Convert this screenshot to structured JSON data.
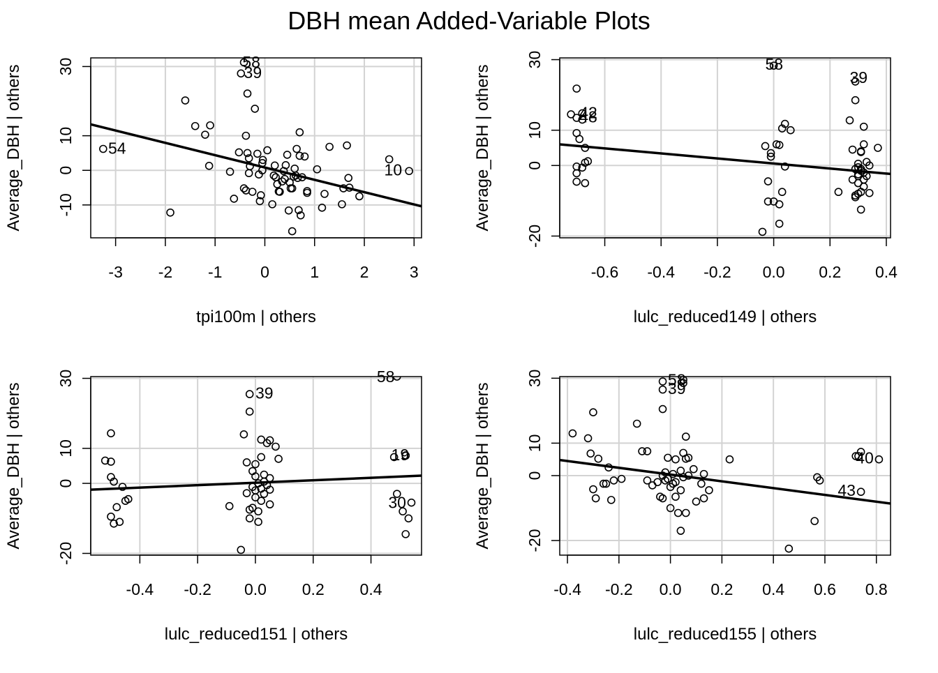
{
  "figure": {
    "title": "DBH mean Added-Variable Plots"
  },
  "chart_data": [
    {
      "type": "scatter",
      "xlabel": "tpi100m | others",
      "ylabel": "Average_DBH  | others",
      "xlim": [
        -3.5,
        3.15
      ],
      "ylim": [
        -19.5,
        32.5
      ],
      "xticks": [
        -3,
        -2,
        -1,
        0,
        1,
        2,
        3
      ],
      "yticks": [
        -10,
        0,
        10,
        30
      ],
      "ytick_labels": [
        "-10",
        "0",
        "10",
        "30"
      ],
      "grid": true,
      "fit_line": {
        "x": [
          -3.5,
          3.15
        ],
        "y": [
          13.3,
          -10.4
        ]
      },
      "points": [
        [
          -3.25,
          6.2
        ],
        [
          -1.9,
          -12.2
        ],
        [
          -1.6,
          20.2
        ],
        [
          -1.4,
          12.8
        ],
        [
          -1.2,
          10.3
        ],
        [
          -1.1,
          13.0
        ],
        [
          -1.12,
          1.3
        ],
        [
          -0.7,
          -0.4
        ],
        [
          -0.62,
          -8.2
        ],
        [
          -0.52,
          5.2
        ],
        [
          -0.48,
          28.0
        ],
        [
          -0.42,
          31.2
        ],
        [
          -0.38,
          10.0
        ],
        [
          -0.35,
          5.0
        ],
        [
          -0.32,
          3.5
        ],
        [
          -0.35,
          22.2
        ],
        [
          -0.3,
          1.2
        ],
        [
          -0.42,
          -5.2
        ],
        [
          -0.38,
          -5.8
        ],
        [
          -0.32,
          -0.8
        ],
        [
          -0.25,
          -6.2
        ],
        [
          -0.2,
          17.8
        ],
        [
          -0.15,
          4.8
        ],
        [
          -0.12,
          -1.2
        ],
        [
          -0.1,
          -8.9
        ],
        [
          -0.08,
          -7.2
        ],
        [
          -0.05,
          0.0
        ],
        [
          -0.05,
          2.1
        ],
        [
          -0.04,
          3.0
        ],
        [
          0.05,
          5.8
        ],
        [
          0.15,
          -9.8
        ],
        [
          0.18,
          -1.5
        ],
        [
          0.2,
          1.4
        ],
        [
          0.22,
          -2.0
        ],
        [
          0.25,
          -4.0
        ],
        [
          0.28,
          -6.1
        ],
        [
          0.3,
          -6.2
        ],
        [
          0.35,
          -3.2
        ],
        [
          0.38,
          -0.2
        ],
        [
          0.4,
          -2.5
        ],
        [
          0.42,
          1.5
        ],
        [
          0.45,
          4.5
        ],
        [
          0.48,
          -11.6
        ],
        [
          0.5,
          -3.5
        ],
        [
          0.52,
          -5.2
        ],
        [
          0.55,
          -5.2
        ],
        [
          0.55,
          -17.6
        ],
        [
          0.58,
          -1.8
        ],
        [
          0.6,
          0.5
        ],
        [
          0.62,
          -1.5
        ],
        [
          0.64,
          6.2
        ],
        [
          0.66,
          -2.2
        ],
        [
          0.68,
          -11.5
        ],
        [
          0.7,
          4.2
        ],
        [
          0.7,
          11.0
        ],
        [
          0.72,
          -13.0
        ],
        [
          0.75,
          -2.0
        ],
        [
          0.8,
          4.0
        ],
        [
          0.85,
          -6.0
        ],
        [
          0.85,
          -6.5
        ],
        [
          1.05,
          0.3
        ],
        [
          1.15,
          -10.8
        ],
        [
          1.2,
          -6.8
        ],
        [
          1.3,
          6.8
        ],
        [
          1.55,
          -9.8
        ],
        [
          1.58,
          -5.2
        ],
        [
          1.65,
          7.2
        ],
        [
          1.68,
          -2.2
        ],
        [
          1.7,
          -5.0
        ],
        [
          1.9,
          -7.5
        ],
        [
          2.5,
          3.2
        ],
        [
          2.9,
          -0.2
        ]
      ],
      "labels": [
        {
          "text": "58",
          "x": -0.45,
          "y": 31.3
        },
        {
          "text": "39",
          "x": -0.42,
          "y": 28.3
        },
        {
          "text": "54",
          "x": -3.15,
          "y": 6.4
        },
        {
          "text": "10",
          "x": 2.4,
          "y": 0.2
        }
      ]
    },
    {
      "type": "scatter",
      "xlabel": "lulc_reduced149 | others",
      "ylabel": "Average_DBH  | others",
      "xlim": [
        -0.76,
        0.415
      ],
      "ylim": [
        -20.5,
        30.5
      ],
      "xticks": [
        -0.6,
        -0.4,
        -0.2,
        0.0,
        0.2,
        0.4
      ],
      "yticks": [
        -20,
        0,
        10,
        30
      ],
      "ytick_labels": [
        "-20",
        "0",
        "10",
        "30"
      ],
      "grid": true,
      "fit_line": {
        "x": [
          -0.76,
          0.415
        ],
        "y": [
          6.0,
          -2.4
        ]
      },
      "points": [
        [
          -0.72,
          14.5
        ],
        [
          -0.7,
          21.8
        ],
        [
          -0.7,
          9.2
        ],
        [
          -0.7,
          13.5
        ],
        [
          -0.69,
          7.5
        ],
        [
          -0.68,
          14.8
        ],
        [
          -0.67,
          5.0
        ],
        [
          -0.7,
          -2.2
        ],
        [
          -0.7,
          -4.6
        ],
        [
          -0.68,
          13.0
        ],
        [
          -0.68,
          -0.6
        ],
        [
          -0.67,
          0.8
        ],
        [
          -0.66,
          1.2
        ],
        [
          -0.67,
          -5.0
        ],
        [
          -0.7,
          -0.3
        ],
        [
          -0.04,
          -18.8
        ],
        [
          -0.03,
          5.5
        ],
        [
          -0.02,
          -4.5
        ],
        [
          -0.02,
          -10.2
        ],
        [
          -0.01,
          3.5
        ],
        [
          -0.01,
          2.5
        ],
        [
          0.0,
          -10.2
        ],
        [
          0.0,
          28.3
        ],
        [
          0.01,
          6.0
        ],
        [
          0.02,
          5.8
        ],
        [
          0.02,
          -16.5
        ],
        [
          0.02,
          -11.0
        ],
        [
          0.03,
          -7.5
        ],
        [
          0.03,
          10.5
        ],
        [
          0.04,
          11.8
        ],
        [
          0.04,
          -0.3
        ],
        [
          0.06,
          10.0
        ],
        [
          0.23,
          -7.5
        ],
        [
          0.27,
          12.8
        ],
        [
          0.28,
          4.5
        ],
        [
          0.29,
          23.8
        ],
        [
          0.29,
          18.5
        ],
        [
          0.29,
          -8.5
        ],
        [
          0.29,
          -9.0
        ],
        [
          0.29,
          -1.0
        ],
        [
          0.3,
          -0.5
        ],
        [
          0.3,
          0.5
        ],
        [
          0.3,
          -3.0
        ],
        [
          0.3,
          -5.0
        ],
        [
          0.31,
          4.0
        ],
        [
          0.31,
          -1.5
        ],
        [
          0.31,
          -7.5
        ],
        [
          0.31,
          -12.5
        ],
        [
          0.32,
          11.0
        ],
        [
          0.32,
          6.0
        ],
        [
          0.32,
          -2.0
        ],
        [
          0.32,
          -4.0
        ],
        [
          0.32,
          -6.0
        ],
        [
          0.33,
          1.0
        ],
        [
          0.33,
          -3.0
        ],
        [
          0.34,
          0.0
        ],
        [
          0.34,
          -7.8
        ],
        [
          0.37,
          5.0
        ],
        [
          0.28,
          -4.0
        ],
        [
          0.3,
          -2.5
        ],
        [
          0.31,
          3.8
        ],
        [
          0.31,
          -1.0
        ],
        [
          0.3,
          -8.0
        ]
      ],
      "labels": [
        {
          "text": "58",
          "x": -0.03,
          "y": 28.7
        },
        {
          "text": "39",
          "x": 0.27,
          "y": 25.0
        },
        {
          "text": "42",
          "x": -0.69,
          "y": 15.0
        },
        {
          "text": "48",
          "x": -0.69,
          "y": 13.8
        }
      ]
    },
    {
      "type": "scatter",
      "xlabel": "lulc_reduced151 | others",
      "ylabel": "Average_DBH  | others",
      "xlim": [
        -0.57,
        0.575
      ],
      "ylim": [
        -20.5,
        30.5
      ],
      "xticks": [
        -0.4,
        -0.2,
        0.0,
        0.2,
        0.4
      ],
      "yticks": [
        -20,
        0,
        10,
        30
      ],
      "ytick_labels": [
        "-20",
        "0",
        "10",
        "30"
      ],
      "grid": true,
      "fit_line": {
        "x": [
          -0.57,
          0.575
        ],
        "y": [
          -1.8,
          2.2
        ]
      },
      "points": [
        [
          -0.52,
          6.5
        ],
        [
          -0.5,
          14.3
        ],
        [
          -0.5,
          6.2
        ],
        [
          -0.5,
          1.8
        ],
        [
          -0.49,
          0.5
        ],
        [
          -0.5,
          -9.5
        ],
        [
          -0.48,
          -6.8
        ],
        [
          -0.49,
          -11.5
        ],
        [
          -0.46,
          -1.0
        ],
        [
          -0.45,
          -5.0
        ],
        [
          -0.44,
          -4.5
        ],
        [
          -0.47,
          -11.0
        ],
        [
          -0.09,
          -6.5
        ],
        [
          -0.05,
          -19.0
        ],
        [
          -0.04,
          14.0
        ],
        [
          -0.03,
          6.0
        ],
        [
          -0.03,
          -2.8
        ],
        [
          -0.02,
          25.5
        ],
        [
          -0.02,
          20.5
        ],
        [
          -0.02,
          -7.5
        ],
        [
          -0.02,
          -10.0
        ],
        [
          -0.01,
          3.5
        ],
        [
          -0.01,
          -1.0
        ],
        [
          -0.01,
          -7.0
        ],
        [
          0.0,
          5.5
        ],
        [
          0.0,
          2.0
        ],
        [
          0.0,
          -2.0
        ],
        [
          0.0,
          -4.0
        ],
        [
          0.01,
          0.0
        ],
        [
          0.01,
          -8.0
        ],
        [
          0.01,
          -11.0
        ],
        [
          0.02,
          12.5
        ],
        [
          0.02,
          7.5
        ],
        [
          0.02,
          -1.5
        ],
        [
          0.02,
          -5.0
        ],
        [
          0.03,
          2.5
        ],
        [
          0.03,
          0.5
        ],
        [
          0.03,
          -3.0
        ],
        [
          0.04,
          11.5
        ],
        [
          0.04,
          -0.5
        ],
        [
          0.05,
          12.3
        ],
        [
          0.05,
          1.5
        ],
        [
          0.05,
          -1.8
        ],
        [
          0.05,
          -6.0
        ],
        [
          0.07,
          10.5
        ],
        [
          0.08,
          7.0
        ],
        [
          0.48,
          7.5
        ],
        [
          0.49,
          30.5
        ],
        [
          0.49,
          -3.0
        ],
        [
          0.51,
          -8.0
        ],
        [
          0.52,
          8.0
        ],
        [
          0.53,
          -10.0
        ],
        [
          0.52,
          -14.5
        ],
        [
          0.54,
          -5.5
        ],
        [
          0.52,
          7.9
        ]
      ],
      "labels": [
        {
          "text": "39",
          "x": 0.0,
          "y": 25.8
        },
        {
          "text": "58",
          "x": 0.42,
          "y": 30.5
        },
        {
          "text": "19",
          "x": 0.47,
          "y": 8.2
        },
        {
          "text": "30",
          "x": 0.46,
          "y": -5.5
        }
      ]
    },
    {
      "type": "scatter",
      "xlabel": "lulc_reduced155 | others",
      "ylabel": "Average_DBH  | others",
      "xlim": [
        -0.43,
        0.855
      ],
      "ylim": [
        -24.5,
        30.5
      ],
      "xticks": [
        -0.4,
        -0.2,
        0.0,
        0.2,
        0.4,
        0.6,
        0.8
      ],
      "yticks": [
        -20,
        0,
        10,
        30
      ],
      "ytick_labels": [
        "-20",
        "0",
        "10",
        "30"
      ],
      "grid": true,
      "fit_line": {
        "x": [
          -0.43,
          0.855
        ],
        "y": [
          4.8,
          -8.6
        ]
      },
      "points": [
        [
          -0.38,
          13.0
        ],
        [
          -0.32,
          11.5
        ],
        [
          -0.31,
          6.8
        ],
        [
          -0.3,
          19.5
        ],
        [
          -0.3,
          -4.2
        ],
        [
          -0.29,
          -7.0
        ],
        [
          -0.28,
          5.2
        ],
        [
          -0.26,
          -2.5
        ],
        [
          -0.25,
          -2.5
        ],
        [
          -0.24,
          2.5
        ],
        [
          -0.23,
          -7.5
        ],
        [
          -0.22,
          -1.5
        ],
        [
          -0.19,
          -1.0
        ],
        [
          -0.13,
          16.0
        ],
        [
          -0.11,
          7.5
        ],
        [
          -0.09,
          7.5
        ],
        [
          -0.09,
          -1.5
        ],
        [
          -0.07,
          -3.0
        ],
        [
          -0.05,
          -2.0
        ],
        [
          -0.04,
          -6.5
        ],
        [
          -0.03,
          29.0
        ],
        [
          -0.03,
          26.5
        ],
        [
          -0.03,
          20.5
        ],
        [
          -0.03,
          0.0
        ],
        [
          -0.03,
          -7.0
        ],
        [
          -0.02,
          1.0
        ],
        [
          -0.02,
          -1.5
        ],
        [
          -0.01,
          5.5
        ],
        [
          -0.01,
          -1.0
        ],
        [
          0.0,
          -10.0
        ],
        [
          0.0,
          -3.5
        ],
        [
          0.01,
          0.5
        ],
        [
          0.01,
          -2.5
        ],
        [
          0.02,
          5.0
        ],
        [
          0.02,
          -2.0
        ],
        [
          0.02,
          -6.5
        ],
        [
          0.03,
          -11.5
        ],
        [
          0.04,
          1.5
        ],
        [
          0.04,
          -17.0
        ],
        [
          0.04,
          -4.5
        ],
        [
          0.05,
          29.5
        ],
        [
          0.05,
          28.5
        ],
        [
          0.05,
          7.0
        ],
        [
          0.05,
          -0.5
        ],
        [
          0.06,
          12.0
        ],
        [
          0.06,
          5.2
        ],
        [
          0.06,
          -11.5
        ],
        [
          0.07,
          5.5
        ],
        [
          0.07,
          0.0
        ],
        [
          0.09,
          2.0
        ],
        [
          0.1,
          -8.0
        ],
        [
          0.12,
          -2.5
        ],
        [
          0.13,
          0.5
        ],
        [
          0.13,
          -7.0
        ],
        [
          0.15,
          -4.5
        ],
        [
          0.23,
          5.0
        ],
        [
          0.46,
          -22.5
        ],
        [
          0.56,
          -14.0
        ],
        [
          0.57,
          -0.5
        ],
        [
          0.58,
          -1.5
        ],
        [
          0.72,
          6.0
        ],
        [
          0.73,
          6.0
        ],
        [
          0.74,
          -5.0
        ],
        [
          0.74,
          7.3
        ],
        [
          0.81,
          5.0
        ]
      ],
      "labels": [
        {
          "text": "58",
          "x": -0.01,
          "y": 29.5
        },
        {
          "text": "39",
          "x": -0.01,
          "y": 26.8
        },
        {
          "text": "40",
          "x": 0.72,
          "y": 5.5
        },
        {
          "text": "43",
          "x": 0.65,
          "y": -4.5
        }
      ]
    }
  ]
}
